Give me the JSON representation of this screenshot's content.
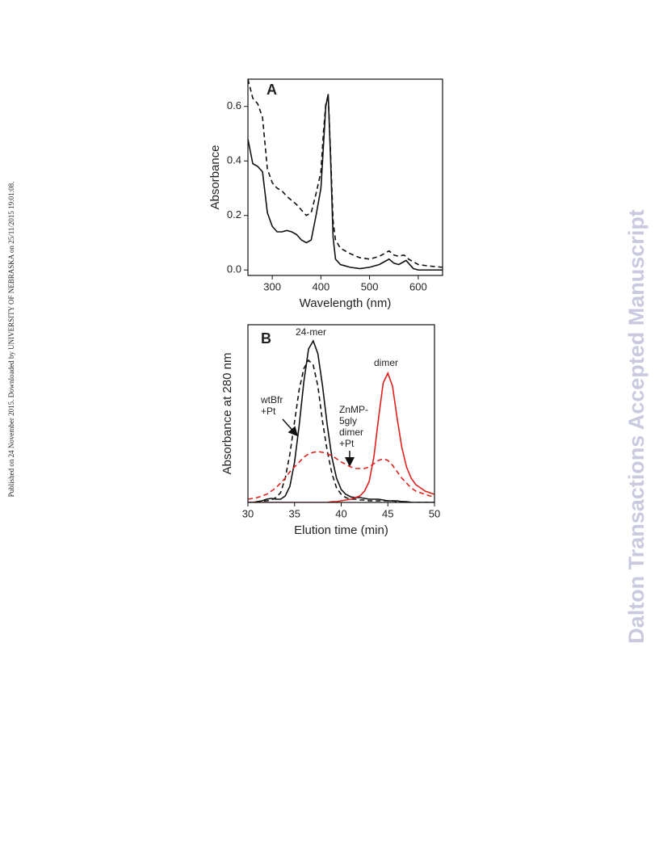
{
  "side_left": "Published on 24 November 2015. Downloaded by UNIVERSITY OF NEBRASKA on 25/11/2015 19:01:08.",
  "side_right": "Dalton Transactions Accepted Manuscript",
  "chart_data": [
    {
      "type": "line",
      "panel": "A",
      "xlabel": "Wavelength (nm)",
      "ylabel": "Absorbance",
      "xlim": [
        250,
        650
      ],
      "xticks": [
        300,
        400,
        500,
        600
      ],
      "ylim": [
        -0.02,
        0.7
      ],
      "yticks": [
        {
          "value": 0,
          "label": "0.0"
        },
        0.2,
        0.4,
        0.6
      ],
      "x": [
        250,
        260,
        270,
        280,
        290,
        300,
        310,
        320,
        330,
        340,
        350,
        360,
        370,
        380,
        390,
        400,
        405,
        410,
        415,
        420,
        425,
        430,
        440,
        450,
        460,
        480,
        500,
        520,
        530,
        540,
        550,
        560,
        570,
        575,
        580,
        590,
        600,
        620,
        650
      ],
      "series": [
        {
          "color": "#111111",
          "dashed": false,
          "values": [
            0.48,
            0.39,
            0.38,
            0.36,
            0.21,
            0.16,
            0.14,
            0.14,
            0.145,
            0.14,
            0.13,
            0.11,
            0.1,
            0.11,
            0.2,
            0.3,
            0.45,
            0.6,
            0.645,
            0.4,
            0.12,
            0.04,
            0.02,
            0.015,
            0.01,
            0.005,
            0.01,
            0.02,
            0.03,
            0.04,
            0.025,
            0.02,
            0.03,
            0.035,
            0.025,
            0.005,
            0,
            0,
            0
          ]
        },
        {
          "color": "#111111",
          "dashed": true,
          "values": [
            0.7,
            0.63,
            0.61,
            0.56,
            0.37,
            0.32,
            0.3,
            0.29,
            0.27,
            0.255,
            0.24,
            0.22,
            0.2,
            0.21,
            0.28,
            0.36,
            0.5,
            0.61,
            0.64,
            0.42,
            0.18,
            0.11,
            0.08,
            0.07,
            0.06,
            0.045,
            0.04,
            0.05,
            0.06,
            0.07,
            0.055,
            0.05,
            0.055,
            0.05,
            0.04,
            0.03,
            0.02,
            0.015,
            0.01
          ]
        }
      ]
    },
    {
      "type": "line",
      "panel": "B",
      "xlabel": "Elution time (min)",
      "ylabel": "Absorbance at 280 nm",
      "xlim": [
        30,
        50
      ],
      "xticks": [
        30,
        35,
        40,
        45,
        50
      ],
      "ylim": [
        0,
        1.1
      ],
      "annotations": [
        [
          "24-mer"
        ],
        [
          "dimer"
        ],
        [
          "wtBfr",
          "+Pt"
        ],
        [
          "ZnMP-",
          "5gly",
          "dimer",
          "+Pt"
        ]
      ],
      "x": [
        30,
        30.5,
        31,
        31.5,
        32,
        32.5,
        33,
        33.5,
        34,
        34.5,
        35,
        35.5,
        36,
        36.5,
        37,
        37.5,
        38,
        38.5,
        39,
        39.5,
        40,
        40.5,
        41,
        41.5,
        42,
        42.5,
        43,
        43.5,
        44,
        44.5,
        45,
        45.5,
        46,
        46.5,
        47,
        47.5,
        48,
        48.5,
        49,
        49.5,
        50
      ],
      "series": [
        {
          "color": "#111111",
          "dashed": false,
          "values": [
            0,
            0,
            0.005,
            0.01,
            0.02,
            0.025,
            0.02,
            0.02,
            0.04,
            0.1,
            0.25,
            0.48,
            0.75,
            0.95,
            1.0,
            0.92,
            0.72,
            0.48,
            0.28,
            0.15,
            0.08,
            0.05,
            0.035,
            0.03,
            0.03,
            0.025,
            0.02,
            0.02,
            0.02,
            0.015,
            0.01,
            0.01,
            0.01,
            0.005,
            0.005,
            0,
            0,
            0,
            0,
            0,
            0
          ]
        },
        {
          "color": "#111111",
          "dashed": true,
          "values": [
            0,
            0,
            0.005,
            0.008,
            0.01,
            0.015,
            0.03,
            0.06,
            0.15,
            0.3,
            0.5,
            0.7,
            0.83,
            0.88,
            0.85,
            0.72,
            0.5,
            0.32,
            0.18,
            0.09,
            0.05,
            0.03,
            0.02,
            0.02,
            0.015,
            0.015,
            0.01,
            0.01,
            0.01,
            0.01,
            0.01,
            0.01,
            0.005,
            0.005,
            0.005,
            0,
            0,
            0,
            0,
            0,
            0
          ]
        },
        {
          "color": "#e0201b",
          "dashed": false,
          "values": [
            0,
            0,
            0,
            0,
            0,
            0,
            0,
            0,
            0,
            0,
            0,
            0,
            0,
            0,
            0,
            0,
            0,
            0,
            0.005,
            0.005,
            0.01,
            0.015,
            0.02,
            0.03,
            0.04,
            0.07,
            0.13,
            0.28,
            0.52,
            0.74,
            0.8,
            0.72,
            0.52,
            0.34,
            0.22,
            0.15,
            0.11,
            0.09,
            0.07,
            0.06,
            0.05
          ]
        },
        {
          "color": "#e0201b",
          "dashed": true,
          "values": [
            0.02,
            0.025,
            0.03,
            0.04,
            0.05,
            0.07,
            0.09,
            0.12,
            0.15,
            0.19,
            0.22,
            0.25,
            0.28,
            0.3,
            0.31,
            0.315,
            0.31,
            0.3,
            0.29,
            0.27,
            0.25,
            0.235,
            0.22,
            0.21,
            0.21,
            0.21,
            0.22,
            0.24,
            0.26,
            0.27,
            0.26,
            0.23,
            0.19,
            0.15,
            0.12,
            0.09,
            0.07,
            0.06,
            0.05,
            0.04,
            0.035
          ]
        }
      ]
    }
  ]
}
